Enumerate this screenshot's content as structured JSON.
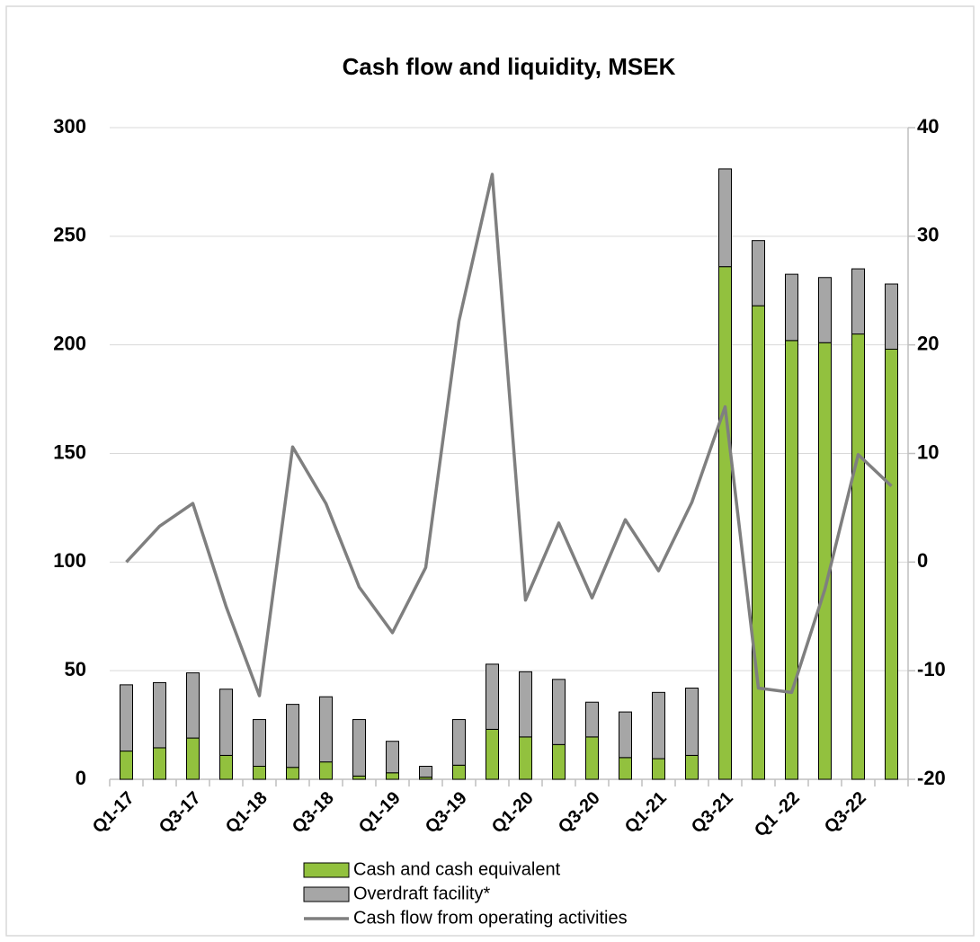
{
  "chart_data": {
    "type": "bar",
    "title": "Cash flow and liquidity, MSEK",
    "categories": [
      "Q1-17",
      null,
      "Q3-17",
      null,
      "Q1-18",
      null,
      "Q3-18",
      null,
      "Q1-19",
      null,
      "Q3-19",
      null,
      "Q1-20",
      null,
      "Q3-20",
      null,
      "Q1-21",
      null,
      "Q3-21",
      null,
      "Q1 -22",
      null,
      "Q3-22",
      null
    ],
    "stacked": true,
    "series": [
      {
        "name": "Cash and cash equivalent",
        "color": "#92c13e",
        "values": [
          13,
          14.5,
          19,
          11,
          6,
          5.5,
          8,
          1.5,
          3,
          1,
          6.5,
          23,
          19.5,
          16,
          19.5,
          10,
          9.5,
          11,
          236,
          218,
          202,
          201,
          205,
          198
        ]
      },
      {
        "name": "Overdraft facility*",
        "color": "#a6a6a6",
        "values": [
          30.5,
          30,
          30,
          30.5,
          21.5,
          29,
          30,
          26,
          14.5,
          5,
          21,
          30,
          30,
          30,
          16,
          21,
          30.5,
          31,
          45,
          30,
          30.5,
          30,
          30,
          30
        ]
      },
      {
        "name": "Cash flow from operating activities",
        "color": "#7f7f7f",
        "type": "line",
        "axis": "y2",
        "values": [
          0,
          3.3,
          5.4,
          -4.1,
          -12.3,
          10.6,
          5.4,
          -2.3,
          -6.5,
          -0.5,
          22.2,
          35.7,
          -3.5,
          3.6,
          -3.3,
          3.9,
          -0.8,
          5.5,
          14.3,
          -11.6,
          -12,
          -2.5,
          9.9,
          7
        ]
      }
    ],
    "ylim": [
      0,
      300
    ],
    "yticks": [
      0,
      50,
      100,
      150,
      200,
      250,
      300
    ],
    "y2lim": [
      -20,
      40
    ],
    "y2ticks": [
      -20,
      -10,
      0,
      10,
      20,
      30,
      40
    ],
    "grid": true,
    "legend": "bottom"
  }
}
